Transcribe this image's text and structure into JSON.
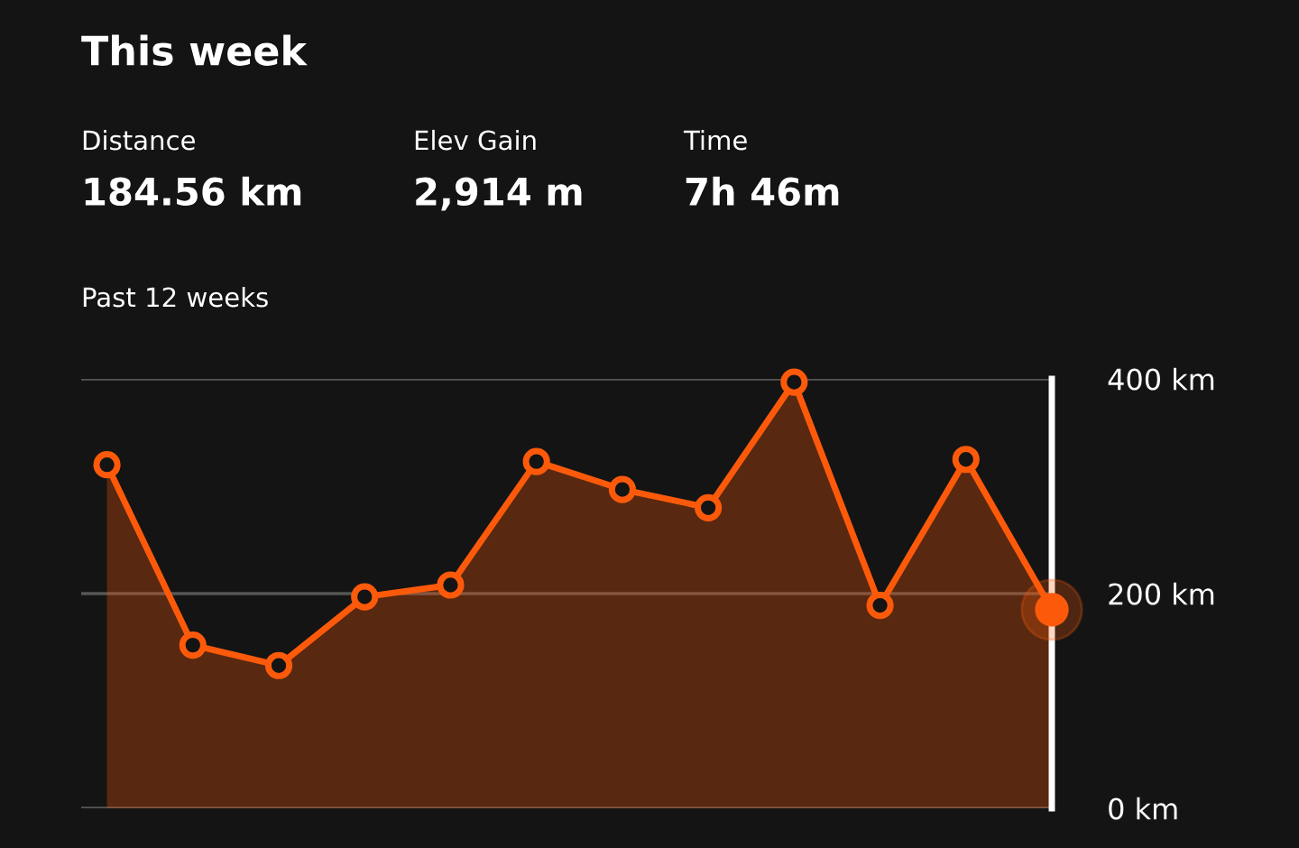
{
  "chart_data": {
    "type": "area",
    "title": "This week",
    "subtitle": "Past 12 weeks",
    "annotations": [
      "Distance",
      "184.56 km",
      "Elev Gain",
      "2,914 m",
      "Time",
      "7h 46m"
    ],
    "categories": [
      null,
      null,
      null,
      null,
      null,
      null,
      null,
      null,
      null,
      null,
      null,
      null
    ],
    "series": [
      {
        "color": "#fc5a0a",
        "values": [
          320,
          152,
          133,
          197,
          208,
          323,
          297,
          280,
          397,
          189,
          325,
          185
        ]
      }
    ],
    "ylim": [
      0,
      400
    ],
    "yticks": [
      {
        "value": 0,
        "label": "0 km"
      },
      {
        "value": 200,
        "label": "200 km"
      },
      {
        "value": 400,
        "label": "400 km"
      }
    ],
    "grid": "y",
    "marker": "circle",
    "line_style": "solid",
    "tick_labels": "y"
  }
}
